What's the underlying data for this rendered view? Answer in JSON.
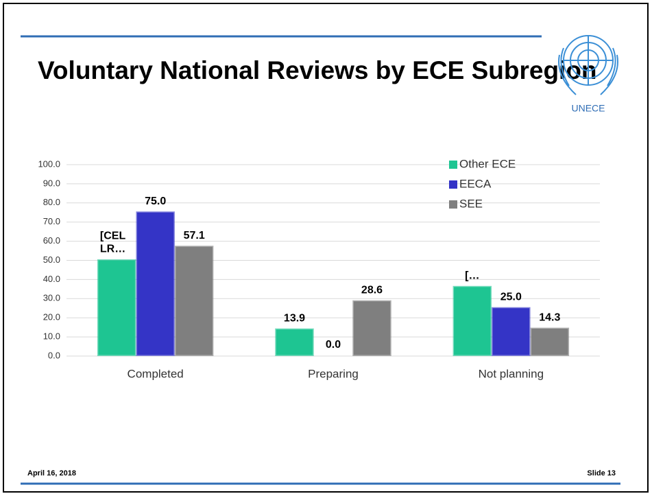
{
  "title": "Voluntary National Reviews by ECE Subregion",
  "logo_text": "UNECE",
  "footer": {
    "date": "April 16, 2018",
    "slide": "Slide 13"
  },
  "chart_data": {
    "type": "bar",
    "categories": [
      "Completed",
      "Preparing",
      "Not planning"
    ],
    "series": [
      {
        "name": "Other ECE",
        "color": "#1ec592",
        "values": [
          50,
          13.9,
          36.1
        ],
        "value_labels": [
          "[CEL\nLR…",
          "13.9",
          "[…"
        ]
      },
      {
        "name": "EECA",
        "color": "#3434c6",
        "values": [
          75.0,
          0.0,
          25.0
        ],
        "value_labels": [
          "75.0",
          "0.0",
          "25.0"
        ]
      },
      {
        "name": "SEE",
        "color": "#7f7f7f",
        "values": [
          57.1,
          28.6,
          14.3
        ],
        "value_labels": [
          "57.1",
          "28.6",
          "14.3"
        ]
      }
    ],
    "ylim": [
      0,
      100
    ],
    "yticks": [
      {
        "value": 0,
        "label": "0.0"
      },
      {
        "value": 10,
        "label": "10.0"
      },
      {
        "value": 20,
        "label": "20.0"
      },
      {
        "value": 30,
        "label": "30.0"
      },
      {
        "value": 40,
        "label": "40.0"
      },
      {
        "value": 50,
        "label": "50.0"
      },
      {
        "value": 60,
        "label": "60.0"
      },
      {
        "value": 70,
        "label": "70.0"
      },
      {
        "value": 80,
        "label": "80.0"
      },
      {
        "value": 90,
        "label": "90.0"
      },
      {
        "value": 100,
        "label": "100.0"
      }
    ],
    "grid": true,
    "legend": "top-right"
  }
}
